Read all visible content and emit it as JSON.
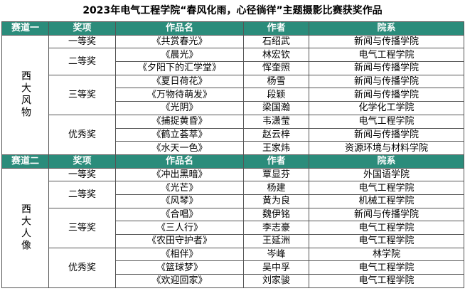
{
  "title": "2023年电气工程学院“春风化雨，心径徜徉”主题摄影比赛获奖作品",
  "sections": [
    {
      "header": {
        "track": "赛道一",
        "award": "奖项",
        "work": "作品名",
        "author": "作者",
        "dept": "院系"
      },
      "track_name": "西大风物",
      "awards": [
        {
          "award": "一等奖",
          "entries": [
            {
              "work": "《共赏春光》",
              "author": "石绍武",
              "dept": "新闻与传播学院"
            }
          ]
        },
        {
          "award": "二等奖",
          "entries": [
            {
              "work": "《晨光》",
              "author": "林宏钦",
              "dept": "电气工程学院"
            },
            {
              "work": "《夕阳下的汇学堂》",
              "author": "恽奎照",
              "dept": "新闻与传播学院"
            }
          ]
        },
        {
          "award": "三等奖",
          "entries": [
            {
              "work": "《夏日荷花》",
              "author": "杨雪",
              "dept": "新闻与传播学院"
            },
            {
              "work": "《万物待萌发》",
              "author": "段颖",
              "dept": "新闻与传播学院"
            },
            {
              "work": "《光阴》",
              "author": "梁国瀚",
              "dept": "化学化工学院"
            }
          ]
        },
        {
          "award": "优秀奖",
          "entries": [
            {
              "work": "《捕捉黄昏》",
              "author": "韦潇莹",
              "dept": "电气工程学院"
            },
            {
              "work": "《鹤立荟萃》",
              "author": "赵云梓",
              "dept": "新闻与传播学院"
            },
            {
              "work": "《水天一色》",
              "author": "王家炜",
              "dept": "资源环境与材料学院"
            }
          ]
        }
      ]
    },
    {
      "header": {
        "track": "赛道二",
        "award": "奖项",
        "work": "作品名",
        "author": "作者",
        "dept": "院系"
      },
      "track_name": "西大人像",
      "awards": [
        {
          "award": "一等奖",
          "entries": [
            {
              "work": "《冲出黑暗》",
              "author": "覃显芬",
              "dept": "外国语学院"
            }
          ]
        },
        {
          "award": "二等奖",
          "entries": [
            {
              "work": "《光芒》",
              "author": "杨建",
              "dept": "电气工程学院"
            },
            {
              "work": "《风琴》",
              "author": "黄为良",
              "dept": "机械工程学院"
            }
          ]
        },
        {
          "award": "三等奖",
          "entries": [
            {
              "work": "《合唱》",
              "author": "魏伊铭",
              "dept": "新闻与传播学院"
            },
            {
              "work": "《三人行》",
              "author": "李志豪",
              "dept": "电气工程学院"
            },
            {
              "work": "《农田守护者》",
              "author": "王延洲",
              "dept": "电气工程学院"
            }
          ]
        },
        {
          "award": "优秀奖",
          "entries": [
            {
              "work": "《相伴》",
              "author": "岑峰",
              "dept": "林学院"
            },
            {
              "work": "《篮球梦》",
              "author": "吴中孚",
              "dept": "电气工程学院"
            },
            {
              "work": "《欢迎回家》",
              "author": "刘家骏",
              "dept": "电气工程学院"
            }
          ]
        }
      ]
    }
  ]
}
